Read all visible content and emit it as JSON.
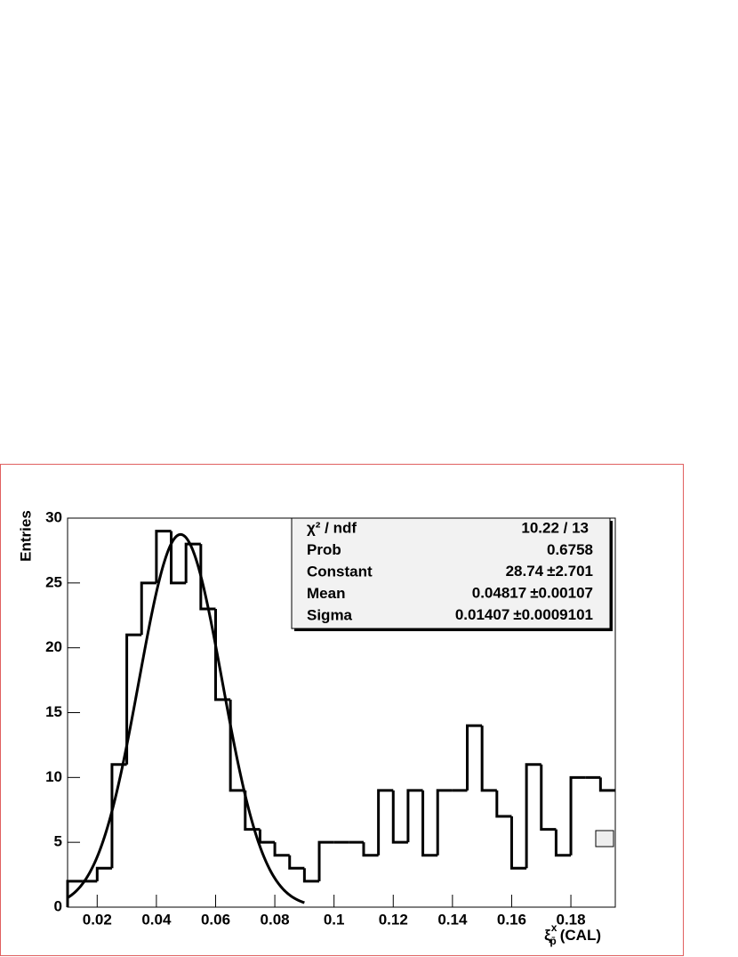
{
  "chart_data": {
    "type": "histogram",
    "x_label": {
      "symbol": "ξ",
      "superscript": "x",
      "subscript": "p̄",
      "suffix": "(CAL)"
    },
    "y_label": "Entries",
    "bins": [
      0.01,
      0.015,
      0.02,
      0.025,
      0.03,
      0.035,
      0.04,
      0.045,
      0.05,
      0.055,
      0.06,
      0.065,
      0.07,
      0.075,
      0.08,
      0.085,
      0.09,
      0.095,
      0.1,
      0.105,
      0.11,
      0.115,
      0.12,
      0.125,
      0.13,
      0.135,
      0.14,
      0.145,
      0.15,
      0.155,
      0.16,
      0.165,
      0.17,
      0.175,
      0.18,
      0.185,
      0.19,
      0.195
    ],
    "values": [
      2,
      2,
      3,
      11,
      21,
      25,
      29,
      25,
      28,
      23,
      16,
      9,
      6,
      5,
      4,
      3,
      2,
      5,
      5,
      5,
      4,
      9,
      5,
      9,
      4,
      9,
      9,
      14,
      9,
      7,
      3,
      11,
      6,
      4,
      10,
      10,
      9
    ],
    "color": "#000000",
    "xlim": [
      0.01,
      0.195
    ],
    "ylim": [
      0,
      30
    ],
    "xticks": [
      0.02,
      0.04,
      0.06,
      0.08,
      0.1,
      0.12,
      0.14,
      0.16,
      0.18
    ],
    "yticks": [
      0,
      5,
      10,
      15,
      20,
      25,
      30
    ],
    "fit": {
      "function": "gaus",
      "range": [
        0.01,
        0.09
      ]
    },
    "stats_box": [
      {
        "label": "χ² / ndf",
        "value": "10.22 / 13"
      },
      {
        "label": "Prob",
        "value": 0.6758
      },
      {
        "label": "Constant",
        "value": 28.74,
        "error": 2.701
      },
      {
        "label": "Mean",
        "value": 0.04817,
        "error": 0.00107
      },
      {
        "label": "Sigma",
        "value": 0.01407,
        "error": 0.0009101
      }
    ]
  }
}
